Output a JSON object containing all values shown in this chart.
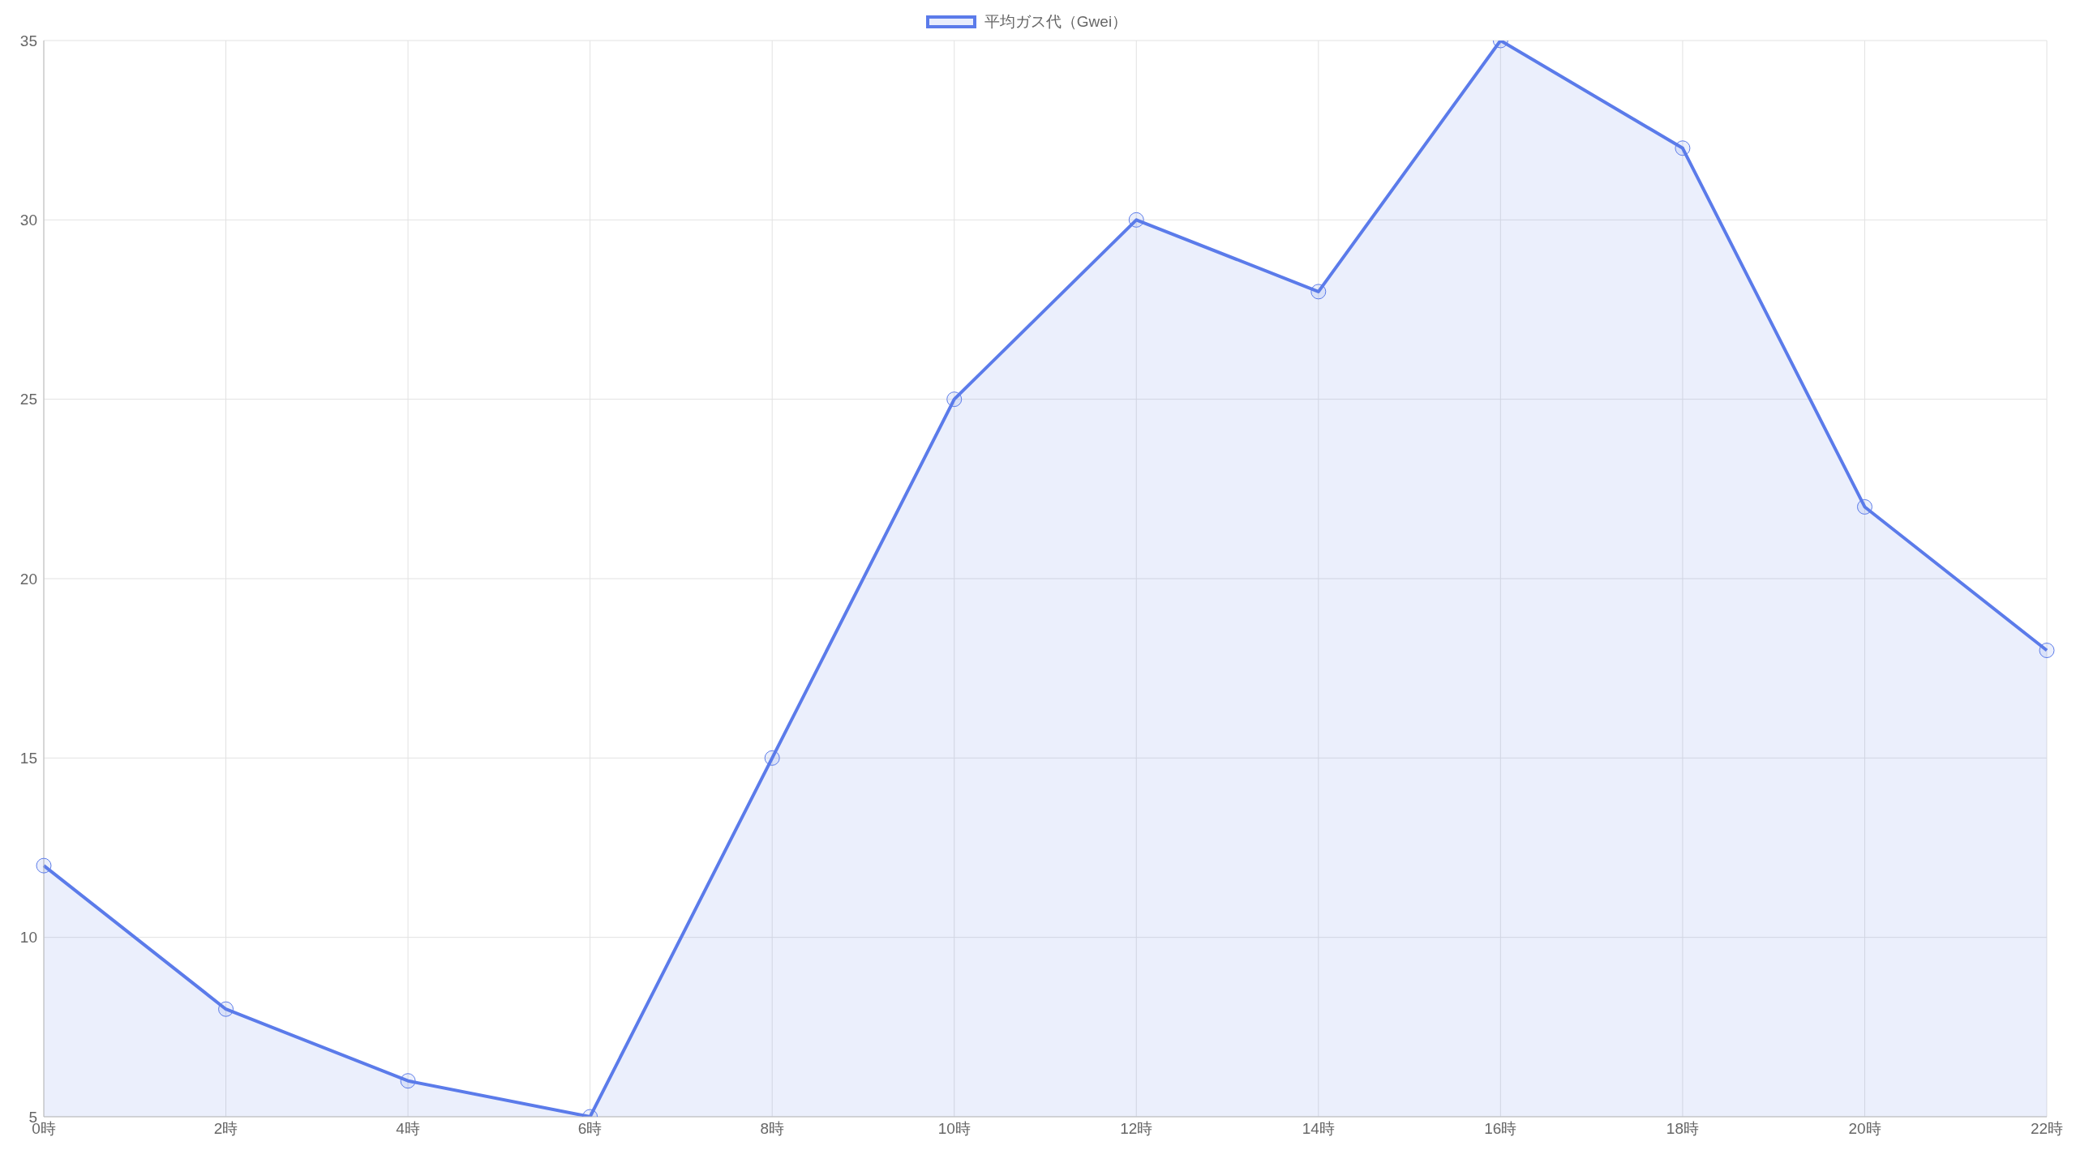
{
  "chart_data": {
    "type": "area",
    "categories": [
      "0時",
      "2時",
      "4時",
      "6時",
      "8時",
      "10時",
      "12時",
      "14時",
      "16時",
      "18時",
      "20時",
      "22時"
    ],
    "series": [
      {
        "name": "平均ガス代（Gwei）",
        "color": "#5b7bea",
        "values": [
          12,
          8,
          6,
          5,
          15,
          25,
          30,
          28,
          35,
          32,
          22,
          18
        ]
      }
    ],
    "ylim": [
      5,
      35
    ],
    "yticks": [
      5,
      10,
      15,
      20,
      25,
      30,
      35
    ],
    "grid": true,
    "legend": "top",
    "marker": "circle"
  }
}
